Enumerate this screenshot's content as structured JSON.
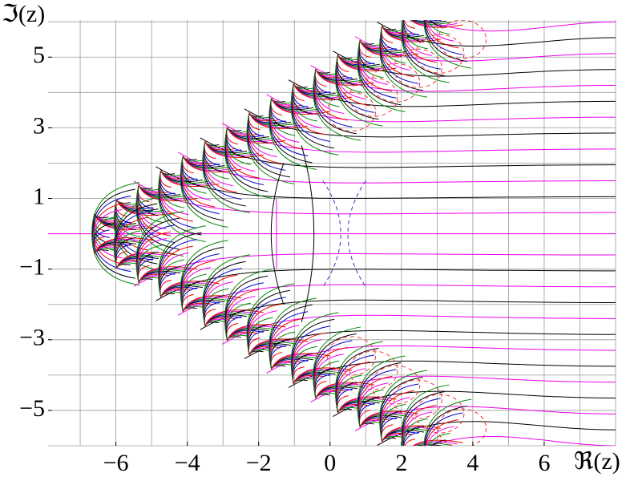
{
  "chart_data": {
    "type": "complex-plot",
    "x_label": "ℜ(z)",
    "y_label": "ℑ(z)",
    "xlim": [
      -7.9,
      8
    ],
    "ylim": [
      -6,
      6.05
    ],
    "xticks": [
      {
        "value": -6,
        "label": "−6"
      },
      {
        "value": -4,
        "label": "−4"
      },
      {
        "value": -2,
        "label": "−2"
      },
      0,
      2,
      4,
      6
    ],
    "yticks": [
      5,
      3,
      1,
      {
        "value": -1,
        "label": "−1"
      },
      {
        "value": -3,
        "label": "−3"
      },
      {
        "value": -5,
        "label": "−5"
      }
    ],
    "xgrid": [
      -7,
      -6,
      -5,
      -4,
      -3,
      -2,
      -1,
      0,
      1,
      2,
      3,
      4,
      5,
      6,
      7,
      8
    ],
    "ygrid": [
      -6,
      -5,
      -4,
      -3,
      -2,
      -1,
      0,
      1,
      2,
      3,
      4,
      5,
      6
    ],
    "grid": true
  }
}
